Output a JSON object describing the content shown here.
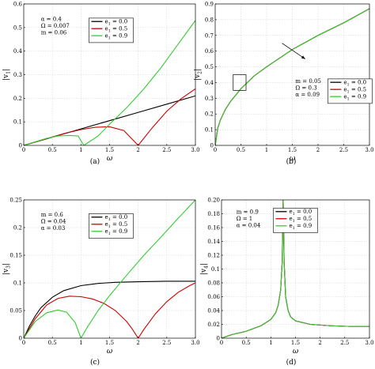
{
  "chart_data": [
    {
      "id": "a",
      "type": "line",
      "panel_label": "(a)",
      "xlabel": "ω",
      "ylabel": "|v1|",
      "xlim": [
        0,
        3.0
      ],
      "ylim": [
        0,
        0.6
      ],
      "xticks": [
        "0",
        "0.5",
        "1",
        "1.5",
        "2",
        "2.5",
        "3.0"
      ],
      "yticks": [
        "0",
        "0.1",
        "0.2",
        "0.3",
        "0.4",
        "0.5",
        "0.6"
      ],
      "grid": true,
      "legend_position": "top-center",
      "params": [
        "α = 0.4",
        "Ω = 0.007",
        "m = 0.06"
      ],
      "series": [
        {
          "name": "e1 = 0.0",
          "color": "#000000",
          "x": [
            0,
            0.5,
            1,
            1.5,
            2,
            2.5,
            3.0
          ],
          "y": [
            0,
            0.035,
            0.07,
            0.105,
            0.14,
            0.175,
            0.21
          ]
        },
        {
          "name": "e1 = 0.5",
          "color": "#cc0000",
          "x": [
            0,
            0.25,
            0.5,
            0.75,
            1.0,
            1.25,
            1.5,
            1.75,
            2.0,
            2.25,
            2.5,
            2.75,
            3.0
          ],
          "y": [
            0,
            0.018,
            0.036,
            0.053,
            0.067,
            0.077,
            0.079,
            0.063,
            0.0,
            0.076,
            0.145,
            0.198,
            0.24
          ]
        },
        {
          "name": "e1 = 0.9",
          "color": "#33cc33",
          "x": [
            0,
            0.2,
            0.4,
            0.6,
            0.8,
            0.95,
            1.0,
            1.05,
            1.1,
            1.3,
            1.5,
            1.8,
            2.1,
            2.4,
            2.7,
            3.0
          ],
          "y": [
            0,
            0.015,
            0.03,
            0.04,
            0.042,
            0.04,
            0.02,
            0.0,
            0.008,
            0.04,
            0.09,
            0.16,
            0.24,
            0.33,
            0.43,
            0.53
          ]
        }
      ]
    },
    {
      "id": "b",
      "type": "line",
      "panel_label": "(b)",
      "xlabel": "ω",
      "ylabel": "|v2|",
      "xlim": [
        0,
        3.0
      ],
      "ylim": [
        0,
        0.9
      ],
      "xticks": [
        "0",
        "0.5",
        "1",
        "1.5",
        "2",
        "2.5",
        "3.0"
      ],
      "yticks": [
        "0",
        "0.1",
        "0.2",
        "0.3",
        "0.4",
        "0.5",
        "0.6",
        "0.7",
        "0.8",
        "0.9"
      ],
      "grid": true,
      "legend_position": "bottom-right",
      "params": [
        "m = 0.05",
        "Ω = 0.3",
        "α = 0.09"
      ],
      "zoom_box": {
        "x": [
          0.35,
          0.6
        ],
        "y": [
          0.35,
          0.45
        ]
      },
      "arrow": {
        "from": [
          1.3,
          0.65
        ],
        "to": [
          1.75,
          0.55
        ]
      },
      "series": [
        {
          "name": "e1 = 0.0",
          "color": "#000000",
          "x": [
            0,
            0.05,
            0.1,
            0.2,
            0.3,
            0.5,
            0.75,
            1.0,
            1.5,
            2.0,
            2.5,
            3.0
          ],
          "y": [
            0,
            0.11,
            0.16,
            0.23,
            0.28,
            0.36,
            0.44,
            0.5,
            0.61,
            0.7,
            0.78,
            0.87
          ]
        },
        {
          "name": "e1 = 0.5",
          "color": "#cc0000",
          "x": [
            0,
            0.05,
            0.1,
            0.2,
            0.3,
            0.5,
            0.75,
            1.0,
            1.5,
            2.0,
            2.5,
            3.0
          ],
          "y": [
            0,
            0.11,
            0.16,
            0.23,
            0.28,
            0.36,
            0.44,
            0.5,
            0.61,
            0.7,
            0.78,
            0.87
          ]
        },
        {
          "name": "e1 = 0.9",
          "color": "#33cc33",
          "x": [
            0,
            0.05,
            0.1,
            0.2,
            0.3,
            0.5,
            0.75,
            1.0,
            1.5,
            2.0,
            2.5,
            3.0
          ],
          "y": [
            0,
            0.11,
            0.16,
            0.23,
            0.28,
            0.36,
            0.44,
            0.5,
            0.61,
            0.7,
            0.78,
            0.87
          ]
        }
      ]
    },
    {
      "id": "c",
      "type": "line",
      "panel_label": "(c)",
      "xlabel": "ω",
      "ylabel": "|v3|",
      "xlim": [
        0,
        3.0
      ],
      "ylim": [
        0,
        0.25
      ],
      "xticks": [
        "0",
        "0.5",
        "1",
        "1.5",
        "2",
        "2.5",
        "3.0"
      ],
      "yticks": [
        "0",
        "0.05",
        "0.1",
        "0.15",
        "0.2",
        "0.25"
      ],
      "grid": true,
      "legend_position": "top-center",
      "params": [
        "m = 0.6",
        "Ω = 0.04",
        "α = 0.03"
      ],
      "series": [
        {
          "name": "e1 = 0.0",
          "color": "#000000",
          "x": [
            0,
            0.1,
            0.2,
            0.3,
            0.5,
            0.7,
            1.0,
            1.3,
            1.6,
            2.0,
            2.5,
            3.0
          ],
          "y": [
            0,
            0.022,
            0.04,
            0.055,
            0.074,
            0.086,
            0.095,
            0.099,
            0.101,
            0.102,
            0.103,
            0.103
          ]
        },
        {
          "name": "e1 = 0.5",
          "color": "#cc0000",
          "x": [
            0,
            0.2,
            0.4,
            0.6,
            0.8,
            1.0,
            1.2,
            1.4,
            1.6,
            1.8,
            1.9,
            2.0,
            2.1,
            2.3,
            2.5,
            2.7,
            2.9,
            3.0
          ],
          "y": [
            0,
            0.035,
            0.06,
            0.072,
            0.076,
            0.075,
            0.071,
            0.063,
            0.05,
            0.03,
            0.016,
            0.0,
            0.016,
            0.044,
            0.066,
            0.083,
            0.095,
            0.1
          ]
        },
        {
          "name": "e1 = 0.9",
          "color": "#33cc33",
          "x": [
            0,
            0.2,
            0.4,
            0.6,
            0.75,
            0.9,
            1.0,
            1.1,
            1.3,
            1.5,
            1.8,
            2.1,
            2.4,
            2.7,
            3.0
          ],
          "y": [
            0,
            0.03,
            0.046,
            0.051,
            0.047,
            0.028,
            0.0,
            0.018,
            0.05,
            0.077,
            0.114,
            0.15,
            0.183,
            0.217,
            0.25
          ]
        }
      ]
    },
    {
      "id": "d",
      "type": "line",
      "panel_label": "(d)",
      "xlabel": "ω",
      "ylabel": "|v4|",
      "xlim": [
        0,
        3.0
      ],
      "ylim": [
        0,
        0.2
      ],
      "xticks": [
        "0",
        "0.5",
        "1",
        "1.5",
        "2",
        "2.5",
        "3.0"
      ],
      "yticks": [
        "0",
        "0.02",
        "0.04",
        "0.06",
        "0.08",
        "0.1",
        "0.12",
        "0.14",
        "0.16",
        "0.18",
        "0.20"
      ],
      "grid": true,
      "legend_position": "top-center",
      "params": [
        "m = 0.9",
        "Ω = 1",
        "α = 0.04"
      ],
      "series": [
        {
          "name": "e1 = 0.0",
          "color": "#000000",
          "x": [
            0,
            0.2,
            0.5,
            0.8,
            1.0,
            1.1,
            1.15,
            1.2,
            1.23,
            1.25,
            1.27,
            1.3,
            1.35,
            1.4,
            1.5,
            1.8,
            2.2,
            2.6,
            3.0
          ],
          "y": [
            0,
            0.005,
            0.01,
            0.018,
            0.027,
            0.037,
            0.048,
            0.07,
            0.11,
            0.2,
            0.11,
            0.06,
            0.04,
            0.031,
            0.025,
            0.02,
            0.018,
            0.017,
            0.017
          ]
        },
        {
          "name": "e1 = 0.5",
          "color": "#cc0000",
          "x": [
            0,
            0.2,
            0.5,
            0.8,
            1.0,
            1.1,
            1.15,
            1.2,
            1.23,
            1.25,
            1.27,
            1.3,
            1.35,
            1.4,
            1.5,
            1.8,
            2.2,
            2.6,
            3.0
          ],
          "y": [
            0,
            0.005,
            0.01,
            0.018,
            0.027,
            0.037,
            0.048,
            0.07,
            0.11,
            0.2,
            0.11,
            0.06,
            0.04,
            0.031,
            0.025,
            0.02,
            0.018,
            0.017,
            0.017
          ]
        },
        {
          "name": "e1 = 0.9",
          "color": "#33cc33",
          "x": [
            0,
            0.2,
            0.5,
            0.8,
            1.0,
            1.1,
            1.15,
            1.2,
            1.23,
            1.25,
            1.27,
            1.3,
            1.35,
            1.4,
            1.5,
            1.8,
            2.2,
            2.6,
            3.0
          ],
          "y": [
            0,
            0.005,
            0.01,
            0.018,
            0.027,
            0.037,
            0.048,
            0.07,
            0.11,
            0.2,
            0.11,
            0.06,
            0.04,
            0.031,
            0.025,
            0.02,
            0.018,
            0.017,
            0.017
          ]
        }
      ]
    }
  ]
}
